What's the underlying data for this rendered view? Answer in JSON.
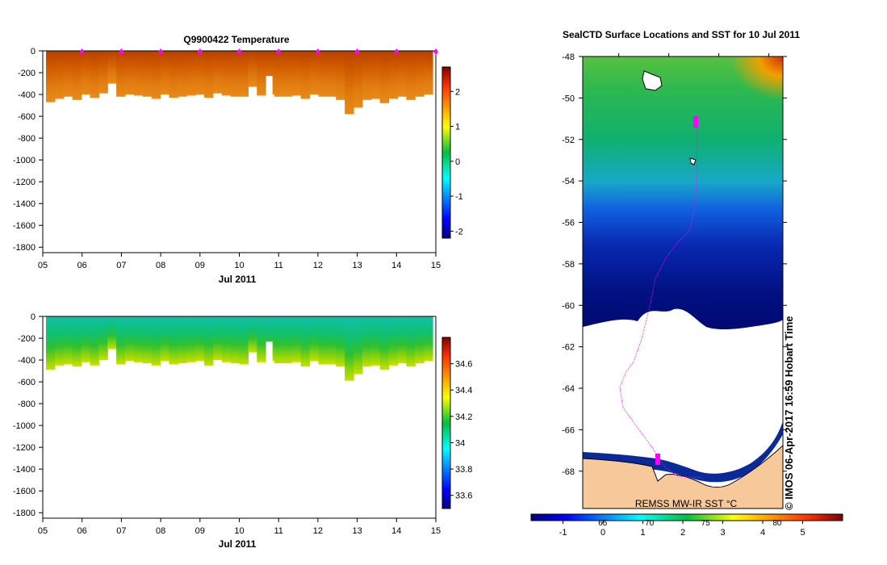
{
  "chart_data": [
    {
      "type": "heatmap",
      "title": "Q9900422  Temperature",
      "xlabel": "Jul 2011",
      "x_ticks": [
        "05",
        "06",
        "07",
        "08",
        "09",
        "10",
        "11",
        "12",
        "13",
        "14",
        "15"
      ],
      "x_range": [
        5,
        15
      ],
      "y_ticks": [
        0,
        -200,
        -400,
        -600,
        -800,
        -1000,
        -1200,
        -1400,
        -1600,
        -1800
      ],
      "ylim": [
        -1850,
        0
      ],
      "colorbar": {
        "min": -2.2,
        "max": 2.7,
        "ticks": [
          2,
          1,
          0,
          -1,
          -2
        ]
      },
      "profile_depths": [
        -470,
        -440,
        -420,
        -450,
        -400,
        -430,
        -390,
        -300,
        -420,
        -400,
        -410,
        -420,
        -440,
        -400,
        -430,
        -420,
        -410,
        -400,
        -430,
        -390,
        -410,
        -420,
        -420,
        -330,
        -410,
        -400,
        -420,
        -420,
        -410,
        -440,
        -400,
        -420,
        -420,
        -450,
        -580,
        -520,
        -450,
        -440,
        -480,
        -440,
        -420,
        -450,
        -420,
        -400
      ],
      "gap_day": 10.68,
      "profile_markers_day": [
        6,
        7,
        8,
        9,
        10,
        11,
        12,
        13,
        14,
        15
      ]
    },
    {
      "type": "heatmap",
      "title": "",
      "xlabel": "Jul 2011",
      "x_ticks": [
        "05",
        "06",
        "07",
        "08",
        "09",
        "10",
        "11",
        "12",
        "13",
        "14",
        "15"
      ],
      "x_range": [
        5,
        15
      ],
      "y_ticks": [
        0,
        -200,
        -400,
        -600,
        -800,
        -1000,
        -1200,
        -1400,
        -1600,
        -1800
      ],
      "ylim": [
        -1850,
        0
      ],
      "colorbar": {
        "min": 33.5,
        "max": 34.8,
        "ticks": [
          34.6,
          34.4,
          34.2,
          34,
          33.8,
          33.6
        ]
      },
      "profile_depths": [
        -490,
        -450,
        -440,
        -460,
        -420,
        -450,
        -400,
        -300,
        -440,
        -410,
        -420,
        -430,
        -450,
        -410,
        -440,
        -430,
        -420,
        -410,
        -450,
        -400,
        -420,
        -430,
        -440,
        -330,
        -420,
        -410,
        -430,
        -430,
        -420,
        -460,
        -410,
        -440,
        -440,
        -460,
        -590,
        -530,
        -460,
        -450,
        -490,
        -450,
        -430,
        -460,
        -430,
        -410
      ],
      "gap_day": 10.68
    },
    {
      "type": "heatmap",
      "title": "SealCTD Surface Locations and SST for 10 Jul 2011",
      "y_ticks": [
        -48,
        -50,
        -52,
        -54,
        -56,
        -58,
        -60,
        -62,
        -64,
        -66,
        -68
      ],
      "ylim": [
        -69.8,
        -48
      ],
      "colorbar": {
        "min": -1.8,
        "max": 6.0,
        "ticks": [
          -1,
          0,
          1,
          2,
          3,
          4,
          5
        ]
      },
      "colorbar_secondary_ticks": [
        "65",
        "70",
        "75",
        "80"
      ],
      "annotation": "REMSS MW-IR SST °C",
      "timestamp": "© IMOS 06-Apr-2017 16:59 Hobart Time"
    }
  ]
}
